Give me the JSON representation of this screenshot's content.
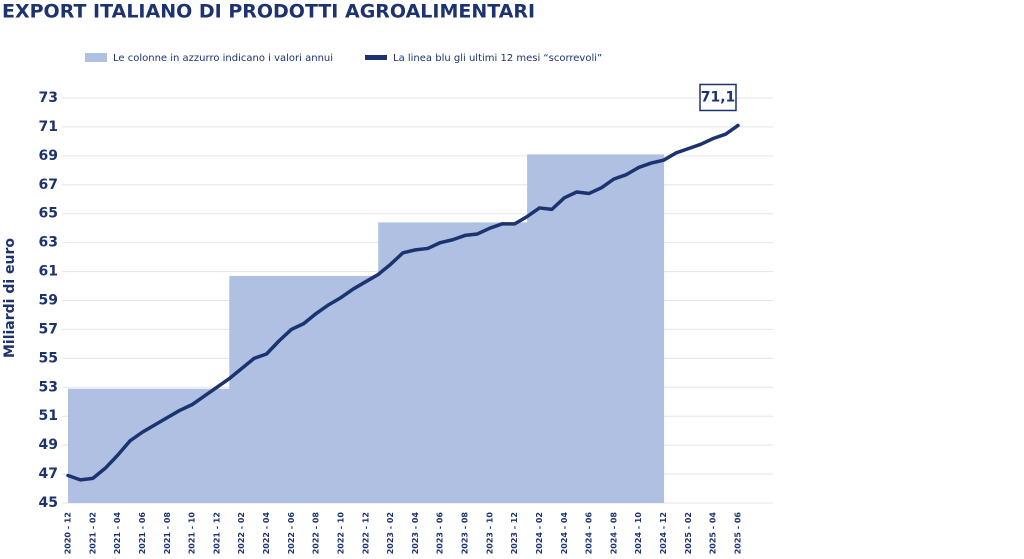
{
  "chart_data": {
    "type": "combo",
    "title": "EXPORT ITALIANO DI PRODOTTI AGROALIMENTARI",
    "y_label": "Miliardi di euro",
    "categories": [
      "2020 - 12",
      null,
      "2021 - 02",
      null,
      "2021 - 04",
      null,
      "2021 - 06",
      null,
      "2021 - 08",
      null,
      "2021 - 10",
      null,
      "2021 - 12",
      null,
      "2022 - 02",
      null,
      "2022 - 04",
      null,
      "2022 - 06",
      null,
      "2022 - 08",
      null,
      "2022 - 10",
      null,
      "2022 - 12",
      null,
      "2023 - 02",
      null,
      "2023 - 04",
      null,
      "2023 - 06",
      null,
      "2023 - 08",
      null,
      "2023 - 10",
      null,
      "2023 - 12",
      null,
      "2024 - 02",
      null,
      "2024 - 04",
      null,
      "2024 - 06",
      null,
      "2024 - 08",
      null,
      "2024 - 10",
      null,
      "2024 - 12",
      null,
      "2025 - 02",
      null,
      "2025 - 04",
      null,
      "2025 - 06"
    ],
    "series": [
      {
        "name": "Le colonne in azzurro indicano i valori annui",
        "type": "bar",
        "color": "#b0c0e3",
        "values": [
          52.9,
          52.9,
          52.9,
          52.9,
          52.9,
          52.9,
          52.9,
          52.9,
          52.9,
          52.9,
          52.9,
          52.9,
          52.9,
          60.7,
          60.7,
          60.7,
          60.7,
          60.7,
          60.7,
          60.7,
          60.7,
          60.7,
          60.7,
          60.7,
          60.7,
          64.4,
          64.4,
          64.4,
          64.4,
          64.4,
          64.4,
          64.4,
          64.4,
          64.4,
          64.4,
          64.4,
          64.4,
          69.1,
          69.1,
          69.1,
          69.1,
          69.1,
          69.1,
          69.1,
          69.1,
          69.1,
          69.1,
          69.1,
          null,
          null,
          null,
          null,
          null,
          null,
          null
        ]
      },
      {
        "name": "La linea blu gli ultimi 12 mesi “scorrevoli”",
        "type": "line",
        "color": "#1d3370",
        "values": [
          46.9,
          46.6,
          46.7,
          47.4,
          48.3,
          49.3,
          49.9,
          50.4,
          50.9,
          51.4,
          51.8,
          52.4,
          53.0,
          53.6,
          54.3,
          55.0,
          55.3,
          56.2,
          57.0,
          57.4,
          58.1,
          58.7,
          59.2,
          59.8,
          60.3,
          60.8,
          61.5,
          62.3,
          62.5,
          62.6,
          63.0,
          63.2,
          63.5,
          63.6,
          64.0,
          64.3,
          64.3,
          64.8,
          65.4,
          65.3,
          66.1,
          66.5,
          66.4,
          66.8,
          67.4,
          67.7,
          68.2,
          68.5,
          68.7,
          69.2,
          69.5,
          69.8,
          70.2,
          70.5,
          71.1
        ],
        "value_labels": [
          null,
          null,
          null,
          null,
          null,
          null,
          null,
          null,
          null,
          null,
          null,
          null,
          null,
          null,
          null,
          null,
          null,
          null,
          null,
          null,
          null,
          null,
          null,
          null,
          null,
          null,
          null,
          null,
          null,
          null,
          null,
          null,
          null,
          null,
          null,
          null,
          null,
          null,
          null,
          null,
          null,
          null,
          null,
          null,
          null,
          null,
          null,
          null,
          null,
          null,
          null,
          null,
          null,
          null,
          "71,1"
        ]
      }
    ],
    "ylim": [
      45,
      73
    ],
    "yticks": [
      45,
      47,
      49,
      51,
      53,
      55,
      57,
      59,
      61,
      63,
      65,
      67,
      69,
      71,
      73
    ],
    "grid": true
  }
}
